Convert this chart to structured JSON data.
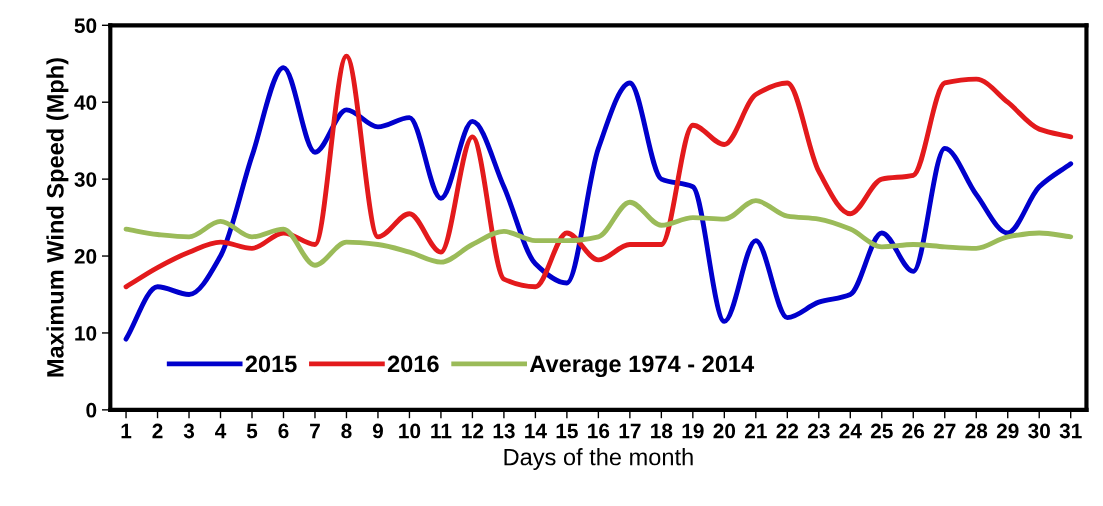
{
  "chart_data": {
    "type": "line",
    "xlabel": "Days of the month",
    "ylabel": "Maximum Wind Speed (Mph)",
    "categories": [
      "1",
      "2",
      "3",
      "4",
      "5",
      "6",
      "7",
      "8",
      "9",
      "10",
      "11",
      "12",
      "13",
      "14",
      "15",
      "16",
      "17",
      "18",
      "19",
      "20",
      "21",
      "22",
      "23",
      "24",
      "25",
      "26",
      "27",
      "28",
      "29",
      "30",
      "31"
    ],
    "series": [
      {
        "name": "2015",
        "color": "#0000cc",
        "values": [
          9.2,
          16,
          15,
          20,
          33,
          44.5,
          33.5,
          39,
          36.8,
          38,
          27.5,
          37.5,
          29,
          19,
          16.5,
          34,
          42.5,
          30,
          29,
          11.5,
          22,
          12,
          14,
          15,
          23,
          18,
          34,
          28,
          23,
          29,
          32
        ]
      },
      {
        "name": "2016",
        "color": "#e31a1c",
        "values": [
          16,
          18.5,
          20.5,
          21.8,
          21,
          23,
          21.5,
          46,
          22.5,
          25.5,
          20.5,
          35.5,
          17,
          16,
          23,
          19.5,
          21.5,
          21.5,
          37,
          34.5,
          41,
          42.5,
          31,
          25.5,
          30,
          30.5,
          42.5,
          43,
          40,
          36.5,
          35.5
        ]
      },
      {
        "name": "Average 1974 - 2014",
        "color": "#9bbb59",
        "values": [
          23.5,
          22.8,
          22.5,
          24.5,
          22.5,
          23.5,
          18.8,
          21.8,
          21.5,
          20.5,
          19.2,
          21.5,
          23.2,
          22,
          22,
          22.5,
          27,
          24,
          25,
          24.8,
          27.2,
          25.2,
          24.8,
          23.5,
          21.2,
          21.5,
          21.2,
          21,
          22.5,
          23,
          22.5
        ]
      }
    ],
    "ylim": [
      0,
      50
    ],
    "yticks": [
      0,
      10,
      20,
      30,
      40,
      50
    ],
    "grid": false,
    "legend": "bottom",
    "marker": "none",
    "line_style": "solid"
  }
}
